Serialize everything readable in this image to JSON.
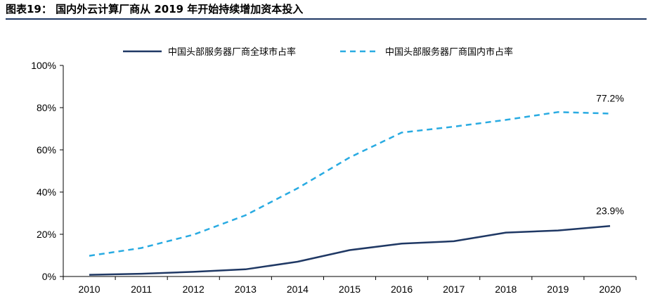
{
  "figure_title": "图表19：   国内外云计算厂商从 2019 年开始持续增加资本投入",
  "chart_data": {
    "type": "line",
    "title": "",
    "xlabel": "",
    "ylabel": "",
    "categories": [
      "2010",
      "2011",
      "2012",
      "2013",
      "2014",
      "2015",
      "2016",
      "2017",
      "2018",
      "2019",
      "2020"
    ],
    "ylim": [
      0,
      100
    ],
    "yticks": [
      "0%",
      "20%",
      "40%",
      "60%",
      "80%",
      "100%"
    ],
    "grid": false,
    "legend_position": "top",
    "series": [
      {
        "name": "中国头部服务器厂商全球市占率",
        "style": "solid",
        "color": "#1f3864",
        "values": [
          0.8,
          1.3,
          2.2,
          3.4,
          7.0,
          12.5,
          15.6,
          16.7,
          20.8,
          21.8,
          23.9
        ],
        "end_label": "23.9%"
      },
      {
        "name": "中国头部服务器厂商国内市占率",
        "style": "dashed",
        "color": "#29abe2",
        "values": [
          9.8,
          13.5,
          19.8,
          29.0,
          41.8,
          56.4,
          68.2,
          71.0,
          74.2,
          77.9,
          77.2
        ],
        "end_label": "77.2%"
      }
    ]
  }
}
